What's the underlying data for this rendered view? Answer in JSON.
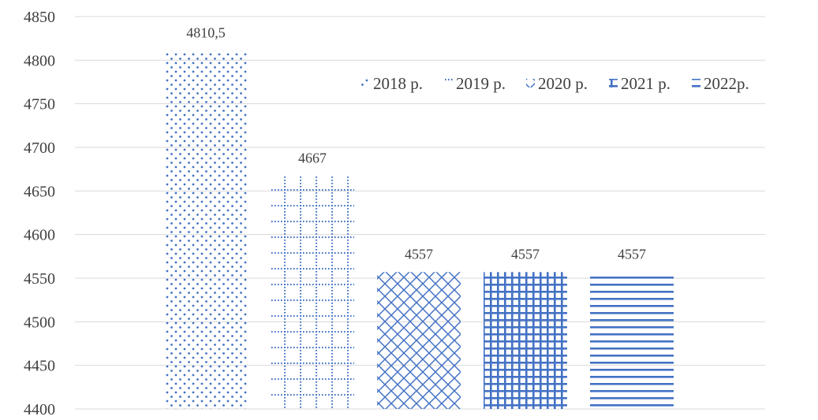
{
  "chart_data": {
    "type": "bar",
    "title": "",
    "xlabel": "",
    "ylabel": "",
    "ylim": [
      4400,
      4850
    ],
    "yticks": [
      4400,
      4450,
      4500,
      4550,
      4600,
      4650,
      4700,
      4750,
      4800,
      4850
    ],
    "grid": true,
    "legend_position": "top-right",
    "series": [
      {
        "name": "2018 р.",
        "value": 4810.5,
        "label": "4810,5",
        "pattern": "dots",
        "color": "#4472C4"
      },
      {
        "name": "2019 р.",
        "value": 4667,
        "label": "4667",
        "pattern": "dotted-grid",
        "color": "#4472C4"
      },
      {
        "name": "2020 р.",
        "value": 4557,
        "label": "4557",
        "pattern": "diagonal-cross",
        "color": "#4472C4"
      },
      {
        "name": "2021 р.",
        "value": 4557,
        "label": "4557",
        "pattern": "grid",
        "color": "#4472C4"
      },
      {
        "name": "2022р.",
        "value": 4557,
        "label": "4557",
        "pattern": "horizontal-lines",
        "color": "#4472C4"
      }
    ]
  }
}
